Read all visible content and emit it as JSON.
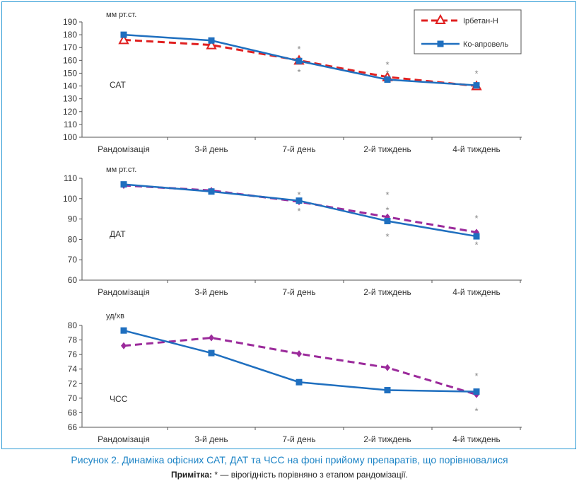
{
  "colors": {
    "series_a": "#e02020",
    "series_b": "#1f6fbf",
    "series_c": "#9b2a9b",
    "frame": "#2e9bd6",
    "caption": "#1d84c6"
  },
  "legend": {
    "items": [
      "Ірбетан-Н",
      "Ко-апровель"
    ]
  },
  "caption": "Рисунок 2.  Динаміка офісних САТ, ДАТ та ЧСС на фоні прийому препаратів, що порівнювалися",
  "note": {
    "label": "Примітка:",
    "text": " * — вірогідність порівняно з етапом рандомізації."
  },
  "chart_data": [
    {
      "type": "line",
      "unit_label": "мм рт.ст.",
      "inner_label": "САТ",
      "categories": [
        "Рандомізація",
        "3-й день",
        "7-й день",
        "2-й тиждень",
        "4-й тиждень"
      ],
      "ylim": [
        100,
        190
      ],
      "yticks": [
        100,
        110,
        120,
        130,
        140,
        150,
        160,
        170,
        180,
        190
      ],
      "series": [
        {
          "name": "Ірбетан-Н",
          "values": [
            176,
            172,
            160,
            147,
            140
          ]
        },
        {
          "name": "Ко-апровель",
          "values": [
            180,
            175.5,
            159.5,
            145,
            140.5
          ]
        }
      ],
      "annotations": [
        {
          "category": 2,
          "value": 169,
          "text": "*"
        },
        {
          "category": 2,
          "value": 151,
          "text": "*"
        },
        {
          "category": 3,
          "value": 157,
          "text": "*"
        },
        {
          "category": 3,
          "value": 150,
          "text": "*"
        },
        {
          "category": 4,
          "value": 150,
          "text": "*"
        }
      ]
    },
    {
      "type": "line",
      "unit_label": "мм рт.ст.",
      "inner_label": "ДАТ",
      "categories": [
        "Рандомізація",
        "3-й день",
        "7-й день",
        "2-й тиждень",
        "4-й тиждень"
      ],
      "ylim": [
        60,
        110
      ],
      "yticks": [
        60,
        70,
        80,
        90,
        100,
        110
      ],
      "series": [
        {
          "name": "",
          "values": [
            106.5,
            104,
            98.5,
            91,
            83.5
          ]
        },
        {
          "name": "",
          "values": [
            107,
            103.5,
            99,
            89,
            81.5
          ]
        }
      ],
      "annotations": [
        {
          "category": 2,
          "value": 102,
          "text": "*"
        },
        {
          "category": 2,
          "value": 94,
          "text": "*"
        },
        {
          "category": 3,
          "value": 102,
          "text": "*"
        },
        {
          "category": 3,
          "value": 94.5,
          "text": "*"
        },
        {
          "category": 3,
          "value": 81.5,
          "text": "*"
        },
        {
          "category": 4,
          "value": 90.5,
          "text": "*"
        },
        {
          "category": 4,
          "value": 77.5,
          "text": "*"
        }
      ]
    },
    {
      "type": "line",
      "unit_label": "уд/хв",
      "inner_label": "ЧСС",
      "categories": [
        "Рандомізація",
        "3-й день",
        "7-й день",
        "2-й тиждень",
        "4-й тиждень"
      ],
      "ylim": [
        66,
        80
      ],
      "yticks": [
        66,
        68,
        70,
        72,
        74,
        76,
        78,
        80
      ],
      "series": [
        {
          "name": "",
          "values": [
            77.2,
            78.3,
            76.1,
            74.2,
            70.5
          ]
        },
        {
          "name": "",
          "values": [
            79.3,
            76.2,
            72.2,
            71.1,
            70.9
          ]
        }
      ],
      "annotations": [
        {
          "category": 4,
          "value": 73.1,
          "text": "*"
        },
        {
          "category": 4,
          "value": 68.3,
          "text": "*"
        }
      ]
    }
  ]
}
